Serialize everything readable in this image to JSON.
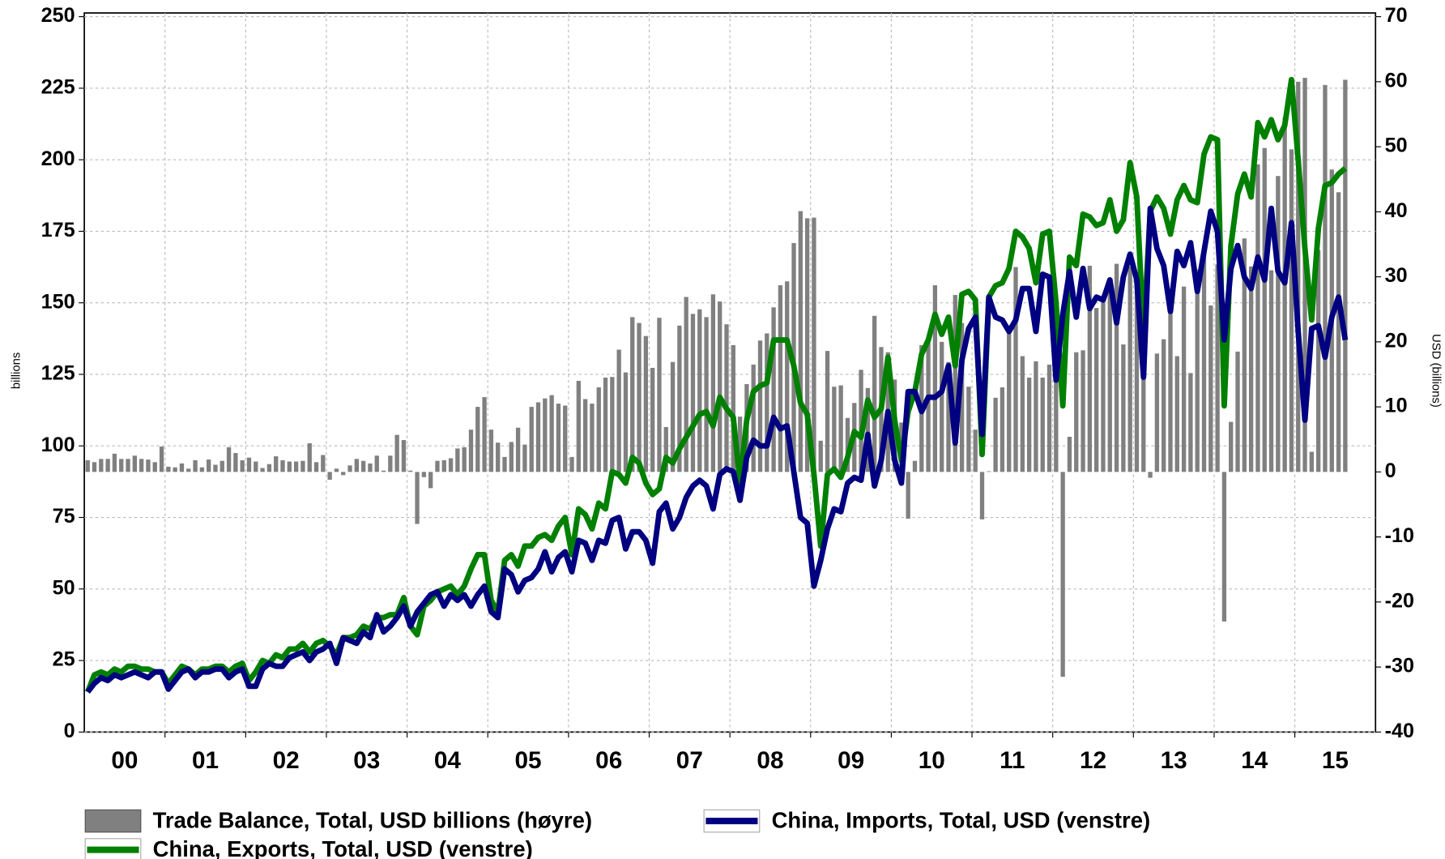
{
  "chart_data": {
    "type": "combo",
    "y_label": "billions",
    "y2_label": "USD (billions)",
    "ylim": [
      0,
      250
    ],
    "yticks": [
      0,
      25,
      50,
      75,
      100,
      125,
      150,
      175,
      200,
      225,
      250
    ],
    "y2lim": [
      -40,
      70
    ],
    "y2ticks": [
      -40,
      -30,
      -20,
      -10,
      0,
      10,
      20,
      30,
      40,
      50,
      60,
      70
    ],
    "grid": true,
    "legend": "bottom",
    "categories": [
      null,
      null,
      null,
      null,
      null,
      null,
      "00",
      null,
      null,
      null,
      null,
      null,
      null,
      null,
      null,
      null,
      null,
      null,
      "01",
      null,
      null,
      null,
      null,
      null,
      null,
      null,
      null,
      null,
      null,
      null,
      "02",
      null,
      null,
      null,
      null,
      null,
      null,
      null,
      null,
      null,
      null,
      null,
      "03",
      null,
      null,
      null,
      null,
      null,
      null,
      null,
      null,
      null,
      null,
      null,
      "04",
      null,
      null,
      null,
      null,
      null,
      null,
      null,
      null,
      null,
      null,
      null,
      "05",
      null,
      null,
      null,
      null,
      null,
      null,
      null,
      null,
      null,
      null,
      null,
      "06",
      null,
      null,
      null,
      null,
      null,
      null,
      null,
      null,
      null,
      null,
      null,
      "07",
      null,
      null,
      null,
      null,
      null,
      null,
      null,
      null,
      null,
      null,
      null,
      "08",
      null,
      null,
      null,
      null,
      null,
      null,
      null,
      null,
      null,
      null,
      null,
      "09",
      null,
      null,
      null,
      null,
      null,
      null,
      null,
      null,
      null,
      null,
      null,
      "10",
      null,
      null,
      null,
      null,
      null,
      null,
      null,
      null,
      null,
      null,
      null,
      "11",
      null,
      null,
      null,
      null,
      null,
      null,
      null,
      null,
      null,
      null,
      null,
      "12",
      null,
      null,
      null,
      null,
      null,
      null,
      null,
      null,
      null,
      null,
      null,
      "13",
      null,
      null,
      null,
      null,
      null,
      null,
      null,
      null,
      null,
      null,
      null,
      "14",
      null,
      null,
      null,
      null,
      null,
      null,
      null,
      null,
      null,
      null,
      null,
      "15",
      null,
      null,
      null,
      null,
      null
    ],
    "series": [
      {
        "name": "Trade Balance, Total, USD billions (høyre)",
        "type": "bar",
        "axis": "y2",
        "color": "#808080",
        "values": [
          1.8,
          1.5,
          2.0,
          2.0,
          2.8,
          2.0,
          2.0,
          2.5,
          2.0,
          1.9,
          1.5,
          3.9,
          0.8,
          0.7,
          1.3,
          0.5,
          1.8,
          0.7,
          1.9,
          1.1,
          1.7,
          3.8,
          2.9,
          1.8,
          2.2,
          1.6,
          0.6,
          1.2,
          2.4,
          1.8,
          1.6,
          1.6,
          1.7,
          4.4,
          1.5,
          2.6,
          -1.2,
          0.5,
          -0.5,
          1.0,
          2.0,
          1.7,
          1.3,
          2.5,
          0.2,
          2.5,
          5.7,
          4.9,
          0.2,
          -8.0,
          -0.8,
          -2.5,
          1.7,
          1.8,
          2.1,
          3.6,
          3.8,
          6.5,
          10.0,
          11.5,
          6.5,
          4.5,
          2.3,
          4.6,
          6.8,
          4.2,
          10.0,
          10.7,
          11.3,
          11.8,
          10.5,
          10.2,
          2.3,
          14.0,
          11.2,
          10.5,
          13.0,
          14.5,
          14.6,
          18.8,
          15.3,
          23.8,
          22.9,
          20.9,
          16.0,
          23.7,
          6.9,
          16.9,
          22.5,
          26.9,
          24.3,
          25.0,
          23.8,
          27.3,
          26.2,
          22.7,
          19.5,
          8.5,
          13.5,
          16.5,
          20.2,
          21.3,
          25.3,
          28.7,
          29.3,
          35.2,
          40.1,
          39.0,
          39.1,
          4.8,
          18.6,
          13.1,
          13.3,
          8.3,
          10.6,
          15.7,
          12.9,
          24.0,
          19.2,
          18.4,
          14.2,
          7.6,
          -7.2,
          1.7,
          19.5,
          20.0,
          28.7,
          20.0,
          16.9,
          27.2,
          22.9,
          13.1,
          6.5,
          -7.3,
          0.1,
          11.4,
          13.0,
          22.3,
          31.5,
          17.8,
          14.5,
          17.0,
          14.5,
          16.5,
          27.3,
          -31.5,
          5.4,
          18.4,
          18.7,
          31.7,
          25.2,
          26.7,
          27.7,
          32.0,
          19.6,
          31.6,
          29.2,
          15.3,
          -0.9,
          18.2,
          20.4,
          27.1,
          17.8,
          28.5,
          15.2,
          31.1,
          33.8,
          25.6,
          31.9,
          -23.0,
          7.7,
          18.5,
          35.9,
          31.6,
          47.3,
          49.8,
          31.0,
          45.5,
          54.5,
          49.6,
          60.0,
          60.6,
          3.1,
          34.1,
          59.5,
          46.5,
          43.0,
          60.3,
          null,
          null,
          null,
          null
        ]
      },
      {
        "name": "China, Imports, Total, USD (venstre)",
        "type": "line",
        "axis": "y",
        "color": "#000080",
        "values": [
          14,
          17,
          19,
          18,
          20,
          19,
          20,
          21,
          20,
          19,
          21,
          21,
          15,
          18,
          21,
          22,
          19,
          21,
          21,
          22,
          22,
          19,
          21,
          22,
          16,
          16,
          22,
          24,
          23,
          23,
          26,
          27,
          28,
          25,
          28,
          29,
          31,
          24,
          33,
          32,
          31,
          35,
          33,
          41,
          35,
          37,
          40,
          44,
          37,
          42,
          45,
          48,
          49,
          44,
          48,
          46,
          48,
          44,
          48,
          51,
          42,
          40,
          57,
          55,
          49,
          53,
          54,
          57,
          63,
          56,
          61,
          63,
          56,
          67,
          66,
          60,
          67,
          66,
          74,
          75,
          64,
          70,
          70,
          67,
          59,
          77,
          80,
          71,
          75,
          82,
          86,
          88,
          86,
          78,
          90,
          92,
          91,
          81,
          96,
          102,
          100,
          100,
          110,
          106,
          107,
          91,
          75,
          73,
          51,
          60,
          71,
          78,
          77,
          87,
          89,
          88,
          104,
          86,
          95,
          112,
          95,
          87,
          119,
          119,
          112,
          117,
          117,
          119,
          128,
          101,
          130,
          141,
          145,
          104,
          152,
          145,
          144,
          140,
          144,
          155,
          155,
          140,
          160,
          159,
          123,
          146,
          161,
          145,
          162,
          148,
          152,
          151,
          158,
          143,
          159,
          167,
          158,
          124,
          183,
          169,
          163,
          147,
          168,
          163,
          171,
          154,
          168,
          182,
          175,
          137,
          162,
          170,
          159,
          155,
          166,
          158,
          183,
          161,
          157,
          178,
          140,
          109,
          141,
          142,
          131,
          145,
          152,
          137,
          null,
          null,
          null,
          null
        ]
      },
      {
        "name": "China, Exports, Total, USD (venstre)",
        "type": "line",
        "axis": "y",
        "color": "#008000",
        "values": [
          14,
          20,
          21,
          20,
          22,
          21,
          23,
          23,
          22,
          22,
          21,
          21,
          17,
          20,
          23,
          22,
          20,
          22,
          22,
          23,
          23,
          21,
          23,
          24,
          18,
          21,
          25,
          24,
          27,
          26,
          29,
          29,
          31,
          28,
          31,
          32,
          30,
          27,
          33,
          33,
          34,
          37,
          36,
          40,
          40,
          41,
          41,
          47,
          37,
          34,
          44,
          46,
          49,
          50,
          51,
          48,
          51,
          57,
          62,
          62,
          46,
          42,
          60,
          62,
          58,
          65,
          65,
          68,
          69,
          67,
          72,
          75,
          62,
          78,
          76,
          71,
          80,
          78,
          91,
          90,
          87,
          96,
          94,
          87,
          83,
          85,
          96,
          94,
          99,
          103,
          107,
          111,
          112,
          107,
          117,
          113,
          110,
          87,
          109,
          119,
          121,
          122,
          137,
          137,
          137,
          128,
          115,
          111,
          90,
          65,
          90,
          92,
          89,
          96,
          105,
          103,
          116,
          110,
          113,
          131,
          109,
          95,
          112,
          119,
          132,
          137,
          146,
          139,
          145,
          128,
          153,
          154,
          151,
          97,
          152,
          156,
          157,
          162,
          175,
          173,
          169,
          157,
          174,
          175,
          150,
          114,
          166,
          163,
          181,
          180,
          177,
          178,
          186,
          175,
          179,
          199,
          187,
          139,
          182,
          187,
          183,
          174,
          186,
          191,
          186,
          185,
          202,
          208,
          207,
          114,
          170,
          188,
          195,
          187,
          213,
          208,
          214,
          207,
          212,
          228,
          200,
          169,
          144,
          176,
          191,
          192,
          195,
          197,
          null,
          null,
          null,
          null
        ]
      }
    ]
  }
}
